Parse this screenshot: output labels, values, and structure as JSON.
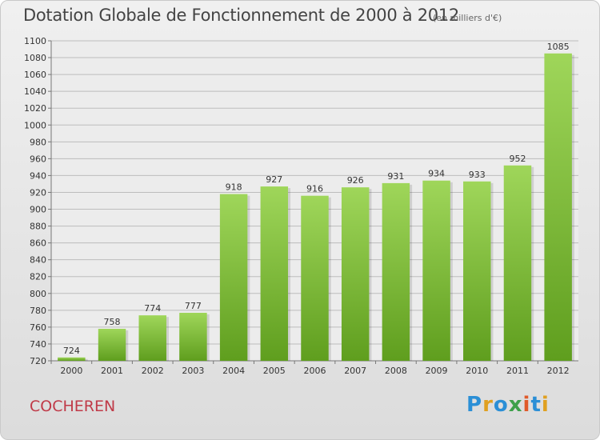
{
  "chart_data": {
    "type": "bar",
    "title": "Dotation Globale de Fonctionnement de 2000 à 2012",
    "subtitle": "(en milliers d'€)",
    "categories": [
      "2000",
      "2001",
      "2002",
      "2003",
      "2004",
      "2005",
      "2006",
      "2007",
      "2008",
      "2009",
      "2010",
      "2011",
      "2012"
    ],
    "values": [
      724,
      758,
      774,
      777,
      918,
      927,
      916,
      926,
      931,
      934,
      933,
      952,
      1085
    ],
    "ylim": [
      720,
      1100
    ],
    "ytick_step": 20,
    "grid": true,
    "bar_color": "#7cc23a",
    "bar_color_light": "#9fd65a"
  },
  "footer": {
    "commune": "COCHEREN",
    "logo_text": "Proxiti",
    "commune_color": "#c03a48"
  }
}
